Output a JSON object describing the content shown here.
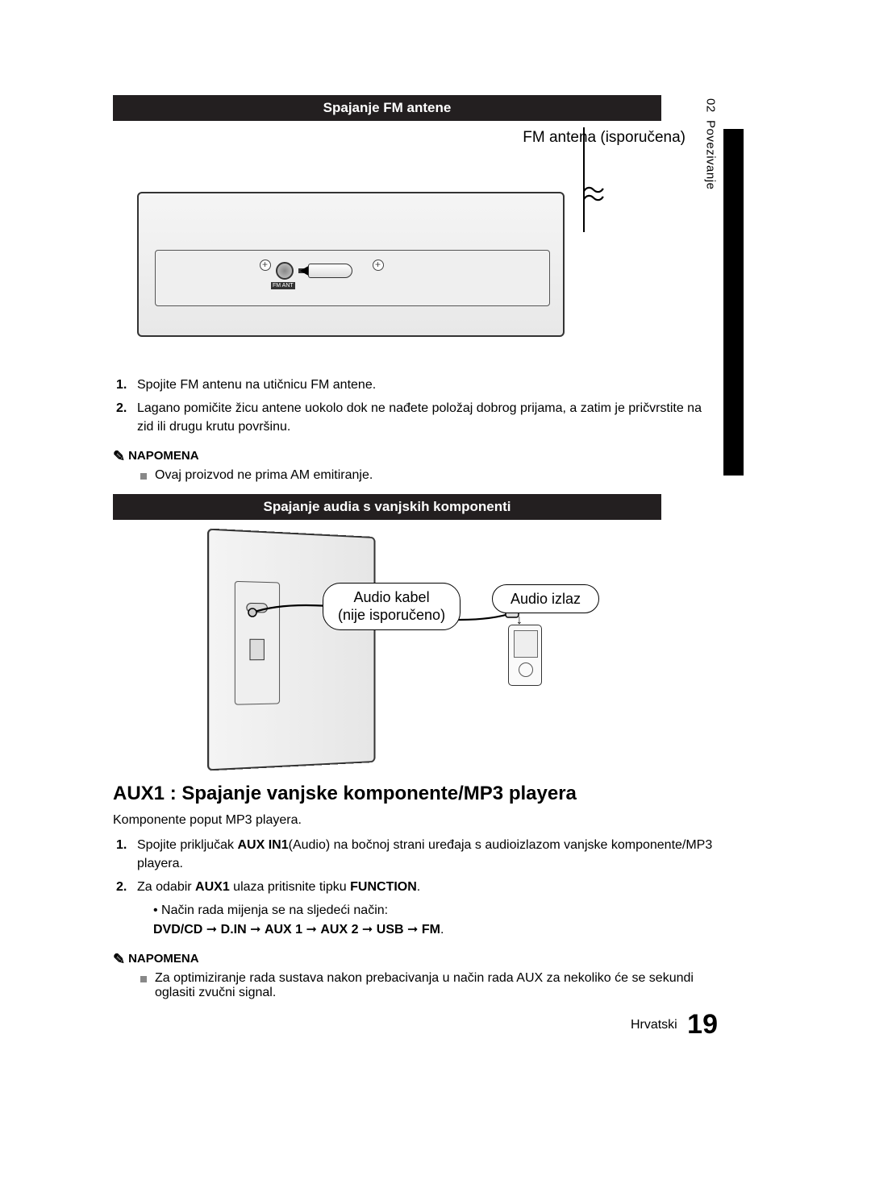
{
  "sidebar": {
    "chapter_num": "02",
    "chapter_title": "Povezivanje"
  },
  "section1": {
    "title": "Spajanje FM antene",
    "fig_label": "FM antena (isporučena)",
    "port_label": "FM ANT",
    "steps": [
      "Spojite FM antenu na utičnicu FM antene.",
      "Lagano pomičite žicu antene uokolo dok ne nađete položaj dobrog prijama, a zatim je pričvrstite na zid ili drugu krutu površinu."
    ],
    "note_label": "NAPOMENA",
    "note_text": "Ovaj proizvod ne prima AM emitiranje."
  },
  "section2": {
    "title": "Spajanje audia s vanjskih komponenti",
    "callout_cable_l1": "Audio kabel",
    "callout_cable_l2": "(nije isporučeno)",
    "callout_out": "Audio izlaz",
    "heading": "AUX1 : Spajanje vanjske komponente/MP3 playera",
    "intro": "Komponente poput MP3 playera.",
    "step1_pre": "Spojite priključak ",
    "step1_bold": "AUX IN1",
    "step1_post": "(Audio) na bočnoj strani uređaja s audioizlazom vanjske komponente/MP3 playera.",
    "step2_pre": "Za odabir ",
    "step2_b1": "AUX1",
    "step2_mid": " ulaza pritisnite tipku ",
    "step2_b2": "FUNCTION",
    "step2_post": ".",
    "mode_line": "Način rada mijenja se na sljedeći način:",
    "chain": [
      "DVD/CD",
      "D.IN",
      "AUX 1",
      "AUX 2",
      "USB",
      "FM"
    ],
    "arrow": " ➞ ",
    "note_label": "NAPOMENA",
    "note_text": "Za optimiziranje rada sustava nakon prebacivanja u način rada AUX za nekoliko će se sekundi oglasiti zvučni signal."
  },
  "footer": {
    "lang": "Hrvatski",
    "page": "19"
  },
  "colors": {
    "bar_bg": "#231f20",
    "bar_fg": "#ffffff",
    "note_square": "#888888"
  }
}
